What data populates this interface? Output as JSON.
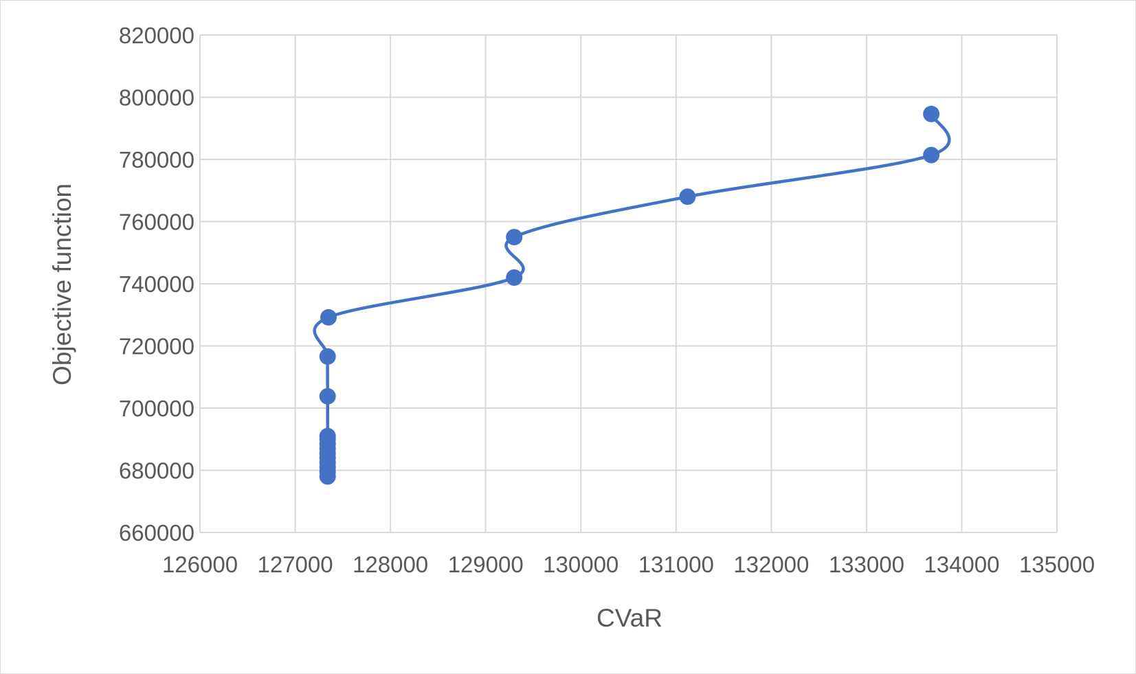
{
  "chart_data": {
    "type": "scatter",
    "xlabel": "CVaR",
    "ylabel": "Objective function",
    "xlim": [
      126000,
      135000
    ],
    "ylim": [
      660000,
      820000
    ],
    "x_ticks": [
      "126000",
      "127000",
      "128000",
      "129000",
      "130000",
      "131000",
      "132000",
      "133000",
      "134000",
      "135000"
    ],
    "y_ticks": [
      "660000",
      "680000",
      "700000",
      "720000",
      "740000",
      "760000",
      "780000",
      "800000",
      "820000"
    ],
    "grid": true,
    "smoothed_line": true,
    "series_color": "#4472c4",
    "series": [
      {
        "points": [
          [
            127340,
            678000
          ],
          [
            127340,
            679500
          ],
          [
            127340,
            681000
          ],
          [
            127340,
            682500
          ],
          [
            127340,
            684000
          ],
          [
            127340,
            685500
          ],
          [
            127340,
            687000
          ],
          [
            127340,
            688500
          ],
          [
            127340,
            690000
          ],
          [
            127340,
            691000
          ],
          [
            127340,
            703800
          ],
          [
            127340,
            716600
          ],
          [
            127350,
            729200
          ],
          [
            129300,
            742000
          ],
          [
            129300,
            755000
          ],
          [
            131120,
            768000
          ],
          [
            133680,
            781400
          ],
          [
            133680,
            794600
          ]
        ]
      }
    ]
  }
}
